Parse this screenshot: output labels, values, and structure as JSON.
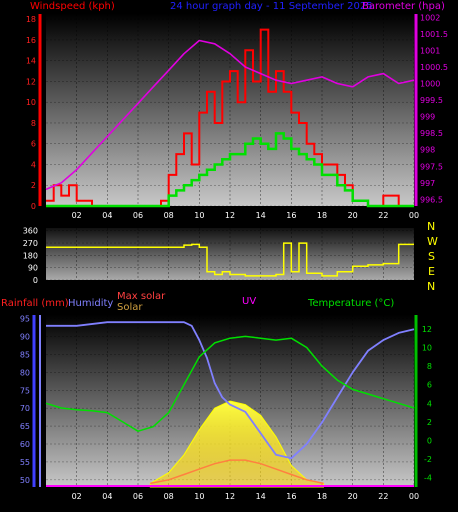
{
  "header": {
    "windspeed_label": "Windspeed (kph)",
    "title": "24 hour graph day - 11 September 2025",
    "barometer_label": "Barometer (hpa)"
  },
  "bottom_header": {
    "rainfall_label": "Rainfall (mm)",
    "humidity_label": "Humidity",
    "maxsolar_label": "Max solar",
    "solar_label": "Solar",
    "uv_label": "UV",
    "temperature_label": "Temperature (°C)"
  },
  "compass_letters": [
    "N",
    "W",
    "S",
    "E",
    "N"
  ],
  "colors": {
    "windspeed": "#ff0000",
    "windgust": "#ff0000",
    "wind_avg": "#00e000",
    "barometer": "#e000e0",
    "direction": "#ffff00",
    "humidity": "#8080ff",
    "temperature": "#00e000",
    "solar": "#ffff00",
    "maxsolar": "#ff8040",
    "uv": "#ff00ff",
    "rain": "#4040ff",
    "title": "#0000ff",
    "axis_right_top": "#e000e0",
    "axis_right_bottom": "#00e000"
  },
  "chart_data": [
    {
      "type": "line",
      "title": "24 hour graph day - 11 September 2025",
      "x_ticks": [
        "02",
        "04",
        "06",
        "08",
        "10",
        "12",
        "14",
        "16",
        "18",
        "20",
        "22",
        "00"
      ],
      "y_left_ticks": [
        "0",
        "2",
        "4",
        "6",
        "8",
        "10",
        "12",
        "14",
        "16",
        "18"
      ],
      "y_right_ticks": [
        "996.5",
        "997",
        "997.5",
        "998",
        "998.5",
        "999",
        "999.5",
        "1000",
        "1000.5",
        "1001",
        "1001.5",
        "1002"
      ],
      "ylim_left": [
        0,
        18.5
      ],
      "ylim_right": [
        996.3,
        1002.1
      ],
      "series": [
        {
          "name": "Windspeed (kph)",
          "axis": "left",
          "x": [
            0,
            0.5,
            1,
            1.5,
            2,
            3,
            4,
            5,
            6,
            7,
            7.5,
            8,
            8.5,
            9,
            9.5,
            10,
            10.5,
            11,
            11.5,
            12,
            12.5,
            13,
            13.5,
            14,
            14.5,
            15,
            15.5,
            16,
            16.5,
            17,
            17.5,
            18,
            18.5,
            19,
            19.5,
            20,
            21,
            22,
            23,
            24
          ],
          "values": [
            0.5,
            2,
            1,
            2,
            0.5,
            0,
            0,
            0,
            0,
            0,
            0.5,
            3,
            5,
            7,
            4,
            9,
            11,
            8,
            12,
            13,
            10,
            15,
            12,
            17,
            11,
            13,
            11,
            9,
            8,
            6,
            5,
            4,
            4,
            3,
            2,
            0.5,
            0,
            1,
            0,
            0
          ]
        },
        {
          "name": "Average",
          "axis": "left",
          "x": [
            0,
            1,
            2,
            3,
            4,
            5,
            6,
            7,
            7.5,
            8,
            8.5,
            9,
            9.5,
            10,
            10.5,
            11,
            11.5,
            12,
            12.5,
            13,
            13.5,
            14,
            14.5,
            15,
            15.5,
            16,
            16.5,
            17,
            17.5,
            18,
            18.5,
            19,
            19.5,
            20,
            21,
            22,
            23,
            24
          ],
          "values": [
            0,
            0,
            0,
            0,
            0,
            0,
            0,
            0,
            0,
            1,
            1.5,
            2,
            2.5,
            3,
            3.5,
            4,
            4.5,
            5,
            5,
            6,
            6.5,
            6,
            5.5,
            7,
            6.5,
            5.5,
            5,
            4.5,
            4,
            3,
            3,
            2,
            1.5,
            0.5,
            0,
            0,
            0,
            0
          ]
        },
        {
          "name": "Barometer (hpa)",
          "axis": "right",
          "x": [
            0,
            1,
            2,
            3,
            4,
            5,
            6,
            7,
            8,
            9,
            10,
            11,
            12,
            13,
            14,
            15,
            16,
            17,
            18,
            19,
            20,
            21,
            22,
            23,
            24
          ],
          "values": [
            996.8,
            997.0,
            997.4,
            997.9,
            998.4,
            998.9,
            999.4,
            999.9,
            1000.4,
            1000.9,
            1001.3,
            1001.2,
            1000.9,
            1000.5,
            1000.3,
            1000.1,
            1000.0,
            1000.1,
            1000.2,
            1000.0,
            999.9,
            1000.2,
            1000.3,
            1000.0,
            1000.1
          ]
        }
      ]
    },
    {
      "type": "line",
      "title": "",
      "y_ticks": [
        "0",
        "90",
        "180",
        "270",
        "360"
      ],
      "ylim": [
        0,
        380
      ],
      "series": [
        {
          "name": "Wind direction",
          "x": [
            0,
            5,
            7,
            8,
            9,
            9.5,
            10,
            10.5,
            11,
            11.5,
            12,
            13,
            14,
            15,
            15.5,
            16,
            16.5,
            17,
            18,
            19,
            20,
            21,
            22,
            23,
            24
          ],
          "values": [
            240,
            240,
            240,
            240,
            255,
            260,
            240,
            60,
            40,
            60,
            40,
            30,
            30,
            40,
            270,
            60,
            270,
            50,
            30,
            60,
            100,
            110,
            120,
            260,
            260
          ]
        }
      ]
    },
    {
      "type": "line",
      "title": "",
      "x_ticks": [
        "02",
        "04",
        "06",
        "08",
        "10",
        "12",
        "14",
        "16",
        "18",
        "20",
        "22",
        "00"
      ],
      "y_left_ticks": [
        "50",
        "55",
        "60",
        "65",
        "70",
        "75",
        "80",
        "85",
        "90",
        "95"
      ],
      "y_right_ticks": [
        "-4",
        "-2",
        "0",
        "2",
        "4",
        "6",
        "8",
        "10",
        "12"
      ],
      "ylim_left": [
        48,
        96
      ],
      "ylim_right": [
        -5,
        13.5
      ],
      "series": [
        {
          "name": "Humidity",
          "axis": "left",
          "x": [
            0,
            2,
            4,
            6,
            8,
            9,
            9.5,
            10,
            10.5,
            11,
            11.5,
            12,
            13,
            14,
            15,
            16,
            17,
            18,
            19,
            20,
            21,
            22,
            23,
            24
          ],
          "values": [
            93,
            93,
            94,
            94,
            94,
            94,
            93,
            89,
            84,
            77,
            73,
            71,
            69,
            63,
            57,
            56,
            60,
            66,
            73,
            80,
            86,
            89,
            91,
            92
          ]
        },
        {
          "name": "Temperature (°C)",
          "axis": "right",
          "x": [
            0,
            1,
            2,
            3,
            4,
            5,
            6,
            7,
            8,
            9,
            10,
            11,
            12,
            13,
            14,
            15,
            16,
            17,
            18,
            19,
            20,
            21,
            22,
            23,
            24
          ],
          "values": [
            4,
            3.5,
            3.3,
            3.2,
            3.0,
            2.0,
            1.0,
            1.5,
            3.0,
            6.0,
            9.0,
            10.5,
            11.0,
            11.2,
            11.0,
            10.8,
            11.0,
            10.0,
            8.0,
            6.5,
            5.5,
            5.0,
            4.5,
            4.0,
            3.5
          ]
        },
        {
          "name": "Solar",
          "axis": "left",
          "x": [
            6.8,
            8,
            9,
            10,
            11,
            12,
            13,
            14,
            15,
            16,
            17,
            18.1
          ],
          "values": [
            49,
            52,
            57,
            64,
            70,
            72,
            71,
            68,
            62,
            54,
            50,
            49
          ]
        },
        {
          "name": "Max solar",
          "axis": "left",
          "x": [
            6.8,
            8,
            9,
            10,
            11,
            12,
            13,
            14,
            15,
            16,
            17,
            18.1
          ],
          "values": [
            49,
            50,
            51.5,
            53,
            54.5,
            55.5,
            55.5,
            54.5,
            53,
            51.5,
            50,
            49
          ]
        }
      ]
    }
  ]
}
